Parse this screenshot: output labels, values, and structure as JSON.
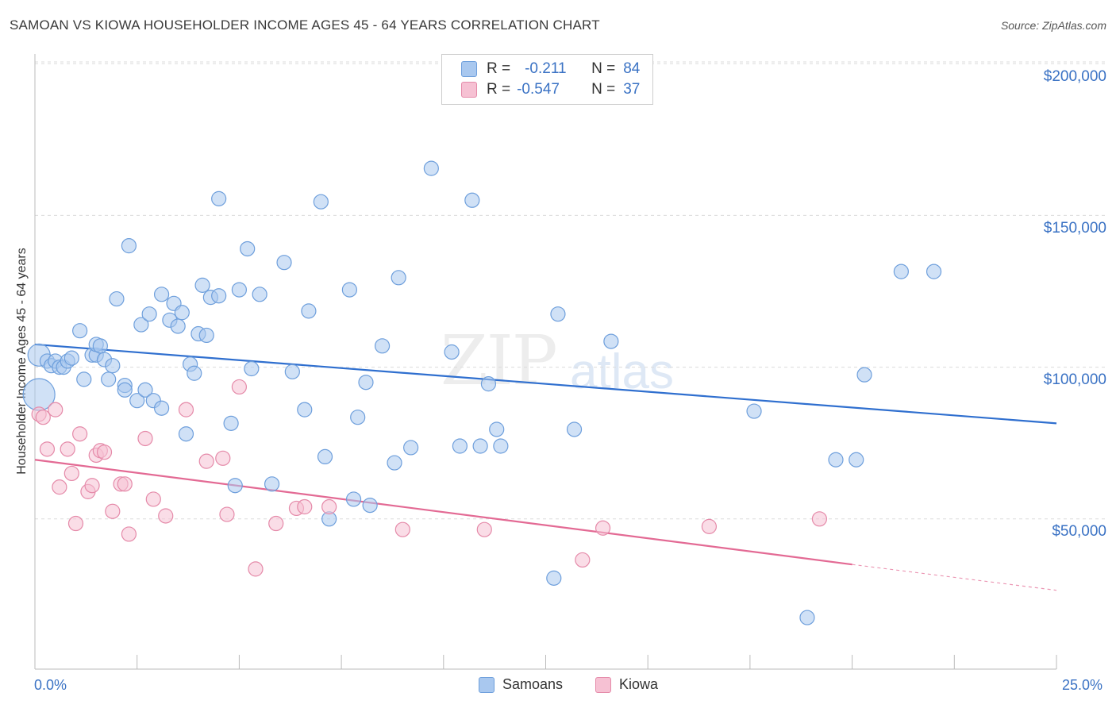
{
  "title": "SAMOAN VS KIOWA HOUSEHOLDER INCOME AGES 45 - 64 YEARS CORRELATION CHART",
  "source": "Source: ZipAtlas.com",
  "watermark": {
    "zip": "ZIP",
    "atlas": "atlas"
  },
  "legend": {
    "rows": [
      {
        "r_label": "R =",
        "r_value": "-0.211",
        "n_label": "N =",
        "n_value": "84",
        "color": "#a9c8ef",
        "border": "#6e9fdc"
      },
      {
        "r_label": "R =",
        "r_value": "-0.547",
        "n_label": "N =",
        "n_value": "37",
        "color": "#f6c1d3",
        "border": "#e58aa9"
      }
    ]
  },
  "bottom_legend": [
    {
      "label": "Samoans",
      "color": "#a9c8ef",
      "border": "#6e9fdc"
    },
    {
      "label": "Kiowa",
      "color": "#f6c1d3",
      "border": "#e58aa9"
    }
  ],
  "x_tick_labels": {
    "min": "0.0%",
    "max": "25.0%"
  },
  "y_tick_labels": [
    "$200,000",
    "$150,000",
    "$100,000",
    "$50,000"
  ],
  "chart_data": {
    "type": "scatter",
    "title": "SAMOAN VS KIOWA HOUSEHOLDER INCOME AGES 45 - 64 YEARS CORRELATION CHART",
    "xlabel": "",
    "ylabel": "Householder Income Ages 45 - 64 years",
    "xlim": [
      0,
      25
    ],
    "ylim": [
      0,
      205000
    ],
    "y_ticks": [
      50000,
      100000,
      150000,
      200000
    ],
    "grid": "horizontal dashed",
    "legend_position": "top-center",
    "series": [
      {
        "name": "Samoans",
        "color": "#6e9fdc",
        "fill": "#a9c8ef",
        "trend": {
          "x": [
            0,
            25
          ],
          "y": [
            107500,
            81500
          ],
          "color": "#2f6fcf"
        },
        "points": [
          [
            0.1,
            104000,
            14
          ],
          [
            0.1,
            91000,
            20
          ],
          [
            0.3,
            102000,
            9
          ],
          [
            0.4,
            100500,
            9
          ],
          [
            0.5,
            102000,
            9
          ],
          [
            0.6,
            100000,
            9
          ],
          [
            0.7,
            100000,
            9
          ],
          [
            0.8,
            102000,
            9
          ],
          [
            0.9,
            103000,
            9
          ],
          [
            1.1,
            112000,
            9
          ],
          [
            1.2,
            96000,
            9
          ],
          [
            1.4,
            104000,
            9
          ],
          [
            1.5,
            104000,
            9
          ],
          [
            1.5,
            107500,
            9
          ],
          [
            1.6,
            107000,
            9
          ],
          [
            1.7,
            102500,
            9
          ],
          [
            1.8,
            96000,
            9
          ],
          [
            1.9,
            100500,
            9
          ],
          [
            2.0,
            122500,
            9
          ],
          [
            2.2,
            94000,
            9
          ],
          [
            2.2,
            92500,
            9
          ],
          [
            2.3,
            140000,
            9
          ],
          [
            2.5,
            89000,
            9
          ],
          [
            2.6,
            114000,
            9
          ],
          [
            2.7,
            92500,
            9
          ],
          [
            2.8,
            117500,
            9
          ],
          [
            2.9,
            89000,
            9
          ],
          [
            3.1,
            124000,
            9
          ],
          [
            3.1,
            86500,
            9
          ],
          [
            3.3,
            115500,
            9
          ],
          [
            3.4,
            121000,
            9
          ],
          [
            3.5,
            113500,
            9
          ],
          [
            3.6,
            118000,
            9
          ],
          [
            3.7,
            78000,
            9
          ],
          [
            3.8,
            101000,
            9
          ],
          [
            3.9,
            98000,
            9
          ],
          [
            4.0,
            111000,
            9
          ],
          [
            4.1,
            127000,
            9
          ],
          [
            4.2,
            110500,
            9
          ],
          [
            4.3,
            123000,
            9
          ],
          [
            4.5,
            123500,
            9
          ],
          [
            4.5,
            155500,
            9
          ],
          [
            4.8,
            81500,
            9
          ],
          [
            4.9,
            61000,
            9
          ],
          [
            5.0,
            125500,
            9
          ],
          [
            5.2,
            139000,
            9
          ],
          [
            5.3,
            99500,
            9
          ],
          [
            5.5,
            124000,
            9
          ],
          [
            5.8,
            61500,
            9
          ],
          [
            6.1,
            134500,
            9
          ],
          [
            6.3,
            98500,
            9
          ],
          [
            6.6,
            86000,
            9
          ],
          [
            6.7,
            118500,
            9
          ],
          [
            7.0,
            154500,
            9
          ],
          [
            7.1,
            70500,
            9
          ],
          [
            7.2,
            50000,
            9
          ],
          [
            7.7,
            125500,
            9
          ],
          [
            7.8,
            56500,
            9
          ],
          [
            7.9,
            83500,
            9
          ],
          [
            8.1,
            95000,
            9
          ],
          [
            8.2,
            54500,
            9
          ],
          [
            8.5,
            107000,
            9
          ],
          [
            8.8,
            68500,
            9
          ],
          [
            8.9,
            129500,
            9
          ],
          [
            9.2,
            73500,
            9
          ],
          [
            9.7,
            165500,
            9
          ],
          [
            10.2,
            105000,
            9
          ],
          [
            10.4,
            74000,
            9
          ],
          [
            10.7,
            155000,
            9
          ],
          [
            10.9,
            74000,
            9
          ],
          [
            11.1,
            94500,
            9
          ],
          [
            11.3,
            79500,
            9
          ],
          [
            11.4,
            74000,
            9
          ],
          [
            12.7,
            30500,
            9
          ],
          [
            12.8,
            117500,
            9
          ],
          [
            13.2,
            79500,
            9
          ],
          [
            14.1,
            108500,
            9
          ],
          [
            17.6,
            85500,
            9
          ],
          [
            18.9,
            17500,
            9
          ],
          [
            19.6,
            69500,
            9
          ],
          [
            20.1,
            69500,
            9
          ],
          [
            20.3,
            97500,
            9
          ],
          [
            21.2,
            131500,
            9
          ],
          [
            22.0,
            131500,
            9
          ]
        ]
      },
      {
        "name": "Kiowa",
        "color": "#e58aa9",
        "fill": "#f6c1d3",
        "trend": {
          "x": [
            0,
            20.0
          ],
          "y": [
            69500,
            35000
          ],
          "color": "#e36a94"
        },
        "trend_extension": {
          "x": [
            20.0,
            25
          ],
          "y": [
            35000,
            26500
          ]
        },
        "points": [
          [
            0.1,
            84500,
            9
          ],
          [
            0.2,
            83500,
            9
          ],
          [
            0.3,
            73000,
            9
          ],
          [
            0.5,
            86000,
            9
          ],
          [
            0.6,
            60500,
            9
          ],
          [
            0.8,
            73000,
            9
          ],
          [
            0.9,
            65000,
            9
          ],
          [
            1.0,
            48500,
            9
          ],
          [
            1.1,
            78000,
            9
          ],
          [
            1.3,
            59000,
            9
          ],
          [
            1.4,
            61000,
            9
          ],
          [
            1.5,
            71000,
            9
          ],
          [
            1.6,
            72500,
            9
          ],
          [
            1.7,
            72000,
            9
          ],
          [
            1.9,
            52500,
            9
          ],
          [
            2.1,
            61500,
            9
          ],
          [
            2.2,
            61500,
            9
          ],
          [
            2.3,
            45000,
            9
          ],
          [
            2.7,
            76500,
            9
          ],
          [
            2.9,
            56500,
            9
          ],
          [
            3.2,
            51000,
            9
          ],
          [
            3.7,
            86000,
            9
          ],
          [
            4.2,
            69000,
            9
          ],
          [
            4.6,
            70000,
            9
          ],
          [
            4.7,
            51500,
            9
          ],
          [
            5.0,
            93500,
            9
          ],
          [
            5.4,
            33500,
            9
          ],
          [
            5.9,
            48500,
            9
          ],
          [
            6.4,
            53500,
            9
          ],
          [
            6.6,
            54000,
            9
          ],
          [
            7.2,
            54000,
            9
          ],
          [
            9.0,
            46500,
            9
          ],
          [
            11.0,
            46500,
            9
          ],
          [
            13.4,
            36500,
            9
          ],
          [
            13.9,
            47000,
            9
          ],
          [
            16.5,
            47500,
            9
          ],
          [
            19.2,
            50000,
            9
          ]
        ]
      }
    ]
  }
}
